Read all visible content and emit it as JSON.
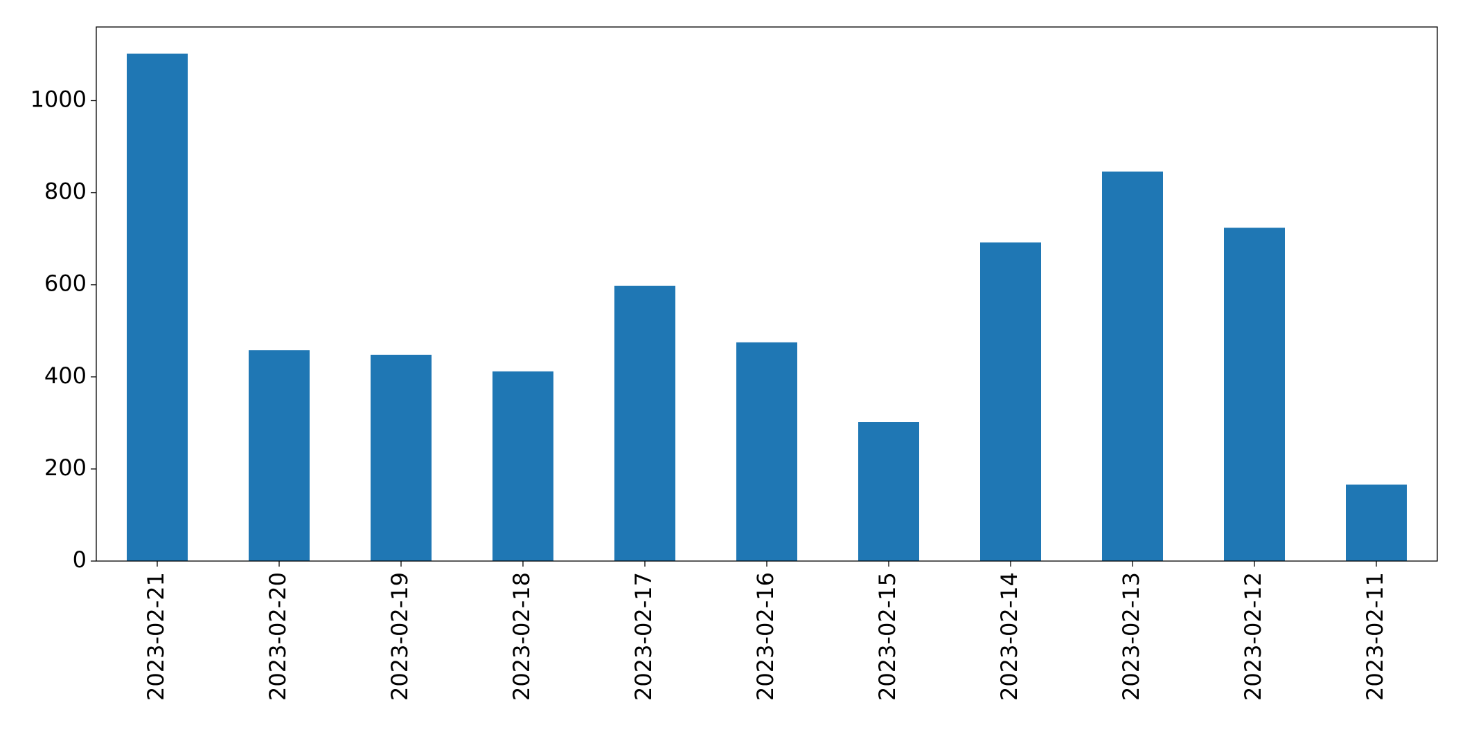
{
  "chart_data": {
    "type": "bar",
    "categories": [
      "2023-02-21",
      "2023-02-20",
      "2023-02-19",
      "2023-02-18",
      "2023-02-17",
      "2023-02-16",
      "2023-02-15",
      "2023-02-14",
      "2023-02-13",
      "2023-02-12",
      "2023-02-11"
    ],
    "values": [
      1102,
      458,
      448,
      412,
      598,
      475,
      302,
      692,
      846,
      724,
      166
    ],
    "color": "#1f77b4",
    "ylim": [
      0,
      1160
    ],
    "yticks": [
      0,
      200,
      400,
      600,
      800,
      1000
    ],
    "grid": false
  }
}
